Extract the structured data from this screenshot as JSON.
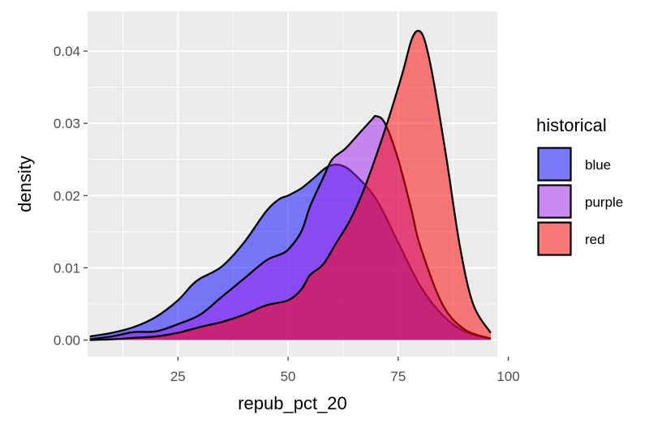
{
  "chart_data": {
    "type": "area",
    "subtype": "density",
    "title": "",
    "xlabel": "repub_pct_20",
    "ylabel": "density",
    "xlim": [
      4.5,
      97.5
    ],
    "ylim": [
      -0.0023,
      0.0455
    ],
    "x_ticks": [
      25,
      50,
      75,
      100
    ],
    "x_tick_labels": [
      "25",
      "50",
      "75",
      "100"
    ],
    "y_ticks": [
      0.0,
      0.01,
      0.02,
      0.03,
      0.04
    ],
    "y_tick_labels": [
      "0.00",
      "0.01",
      "0.02",
      "0.03",
      "0.04"
    ],
    "grid": true,
    "legend": {
      "title": "historical",
      "position": "right"
    },
    "series": [
      {
        "name": "blue",
        "color": "#0000FF",
        "alpha": 0.5,
        "points": [
          [
            5,
            0.0005
          ],
          [
            10,
            0.001
          ],
          [
            15,
            0.0018
          ],
          [
            20,
            0.0032
          ],
          [
            25,
            0.0055
          ],
          [
            28,
            0.0075
          ],
          [
            30,
            0.0085
          ],
          [
            35,
            0.0102
          ],
          [
            40,
            0.0135
          ],
          [
            45,
            0.0178
          ],
          [
            48,
            0.0195
          ],
          [
            50,
            0.02
          ],
          [
            53,
            0.021
          ],
          [
            56,
            0.0225
          ],
          [
            59,
            0.024
          ],
          [
            62,
            0.0242
          ],
          [
            65,
            0.023
          ],
          [
            70,
            0.0195
          ],
          [
            75,
            0.0135
          ],
          [
            80,
            0.0075
          ],
          [
            85,
            0.0035
          ],
          [
            90,
            0.0012
          ],
          [
            96,
            0.0002
          ]
        ]
      },
      {
        "name": "purple",
        "color": "#A020F0",
        "alpha": 0.5,
        "points": [
          [
            5,
            0.0001
          ],
          [
            10,
            0.0005
          ],
          [
            15,
            0.0011
          ],
          [
            20,
            0.0012
          ],
          [
            25,
            0.0022
          ],
          [
            30,
            0.0035
          ],
          [
            35,
            0.006
          ],
          [
            40,
            0.0085
          ],
          [
            45,
            0.011
          ],
          [
            48,
            0.0118
          ],
          [
            50,
            0.0125
          ],
          [
            53,
            0.015
          ],
          [
            55,
            0.0185
          ],
          [
            58,
            0.0225
          ],
          [
            60,
            0.025
          ],
          [
            63,
            0.0265
          ],
          [
            66,
            0.0285
          ],
          [
            69,
            0.0305
          ],
          [
            70,
            0.031
          ],
          [
            72,
            0.03
          ],
          [
            75,
            0.025
          ],
          [
            78,
            0.018
          ],
          [
            80,
            0.013
          ],
          [
            85,
            0.005
          ],
          [
            90,
            0.0015
          ],
          [
            96,
            0.0002
          ]
        ]
      },
      {
        "name": "red",
        "color": "#FF0000",
        "alpha": 0.5,
        "points": [
          [
            5,
            0.0
          ],
          [
            10,
            0.0001
          ],
          [
            15,
            0.0003
          ],
          [
            20,
            0.0005
          ],
          [
            25,
            0.001
          ],
          [
            30,
            0.0018
          ],
          [
            35,
            0.0025
          ],
          [
            40,
            0.0035
          ],
          [
            45,
            0.0048
          ],
          [
            50,
            0.0055
          ],
          [
            53,
            0.007
          ],
          [
            55,
            0.009
          ],
          [
            58,
            0.0105
          ],
          [
            61,
            0.0135
          ],
          [
            64,
            0.0165
          ],
          [
            67,
            0.0205
          ],
          [
            70,
            0.0255
          ],
          [
            73,
            0.031
          ],
          [
            76,
            0.037
          ],
          [
            78,
            0.0415
          ],
          [
            79.5,
            0.0428
          ],
          [
            81,
            0.0415
          ],
          [
            83,
            0.036
          ],
          [
            86,
            0.025
          ],
          [
            89,
            0.013
          ],
          [
            92,
            0.005
          ],
          [
            96,
            0.001
          ]
        ]
      }
    ]
  }
}
